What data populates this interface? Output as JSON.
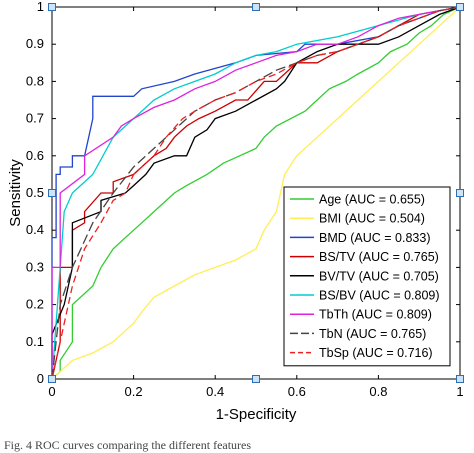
{
  "caption": "Fig. 4 ROC curves comparing the different features",
  "chart_data": {
    "type": "line",
    "title": "",
    "xlabel": "1-Specificity",
    "ylabel": "Sensitivity",
    "xlim": [
      0,
      1
    ],
    "ylim": [
      0,
      1
    ],
    "xticks": [
      "0",
      "0.2",
      "0.4",
      "0.6",
      "0.8",
      "1"
    ],
    "yticks": [
      "0",
      "0.1",
      "0.2",
      "0.3",
      "0.4",
      "0.5",
      "0.6",
      "0.7",
      "0.8",
      "0.9",
      "1"
    ],
    "grid": false,
    "legend_position": "bottom-right",
    "series": [
      {
        "name": "Age (AUC = 0.655)",
        "color": "#33cc33",
        "dash": "solid",
        "x": [
          0,
          0.02,
          0.02,
          0.05,
          0.05,
          0.1,
          0.12,
          0.15,
          0.2,
          0.22,
          0.25,
          0.3,
          0.33,
          0.38,
          0.42,
          0.46,
          0.5,
          0.52,
          0.55,
          0.62,
          0.65,
          0.68,
          0.72,
          0.75,
          0.8,
          0.83,
          0.87,
          0.9,
          0.93,
          0.96,
          1
        ],
        "y": [
          0,
          0.02,
          0.05,
          0.1,
          0.2,
          0.25,
          0.3,
          0.35,
          0.4,
          0.42,
          0.45,
          0.5,
          0.52,
          0.55,
          0.58,
          0.6,
          0.62,
          0.65,
          0.68,
          0.72,
          0.75,
          0.78,
          0.8,
          0.82,
          0.85,
          0.88,
          0.9,
          0.93,
          0.95,
          0.98,
          1
        ]
      },
      {
        "name": "BMI (AUC = 0.504)",
        "color": "#ffee55",
        "dash": "solid",
        "x": [
          0,
          0.02,
          0.05,
          0.1,
          0.15,
          0.2,
          0.22,
          0.25,
          0.3,
          0.35,
          0.4,
          0.45,
          0.5,
          0.52,
          0.55,
          0.57,
          0.6,
          0.65,
          0.7,
          0.75,
          0.8,
          0.85,
          0.9,
          0.95,
          1
        ],
        "y": [
          0,
          0.02,
          0.05,
          0.07,
          0.1,
          0.15,
          0.18,
          0.22,
          0.25,
          0.28,
          0.3,
          0.32,
          0.35,
          0.4,
          0.45,
          0.55,
          0.6,
          0.65,
          0.7,
          0.75,
          0.8,
          0.85,
          0.9,
          0.95,
          1
        ]
      },
      {
        "name": "BMD (AUC = 0.833)",
        "color": "#2244cc",
        "dash": "solid",
        "x": [
          0,
          0,
          0.01,
          0.01,
          0.02,
          0.02,
          0.05,
          0.05,
          0.08,
          0.1,
          0.1,
          0.2,
          0.22,
          0.3,
          0.35,
          0.45,
          0.5,
          0.6,
          0.62,
          0.7,
          0.8,
          0.85,
          0.9,
          0.95,
          1
        ],
        "y": [
          0,
          0.38,
          0.38,
          0.55,
          0.55,
          0.57,
          0.57,
          0.6,
          0.6,
          0.7,
          0.76,
          0.76,
          0.78,
          0.8,
          0.82,
          0.85,
          0.87,
          0.88,
          0.9,
          0.9,
          0.92,
          0.95,
          0.97,
          0.99,
          1
        ]
      },
      {
        "name": "BS/TV (AUC = 0.765)",
        "color": "#cc0000",
        "dash": "solid",
        "x": [
          0,
          0.02,
          0.02,
          0.05,
          0.05,
          0.08,
          0.08,
          0.12,
          0.15,
          0.15,
          0.2,
          0.25,
          0.28,
          0.3,
          0.33,
          0.36,
          0.4,
          0.45,
          0.48,
          0.52,
          0.55,
          0.6,
          0.65,
          0.7,
          0.75,
          0.8,
          0.85,
          0.9,
          1
        ],
        "y": [
          0,
          0.1,
          0.3,
          0.3,
          0.4,
          0.42,
          0.45,
          0.5,
          0.5,
          0.53,
          0.55,
          0.6,
          0.62,
          0.65,
          0.68,
          0.7,
          0.72,
          0.75,
          0.75,
          0.8,
          0.8,
          0.85,
          0.85,
          0.88,
          0.9,
          0.92,
          0.95,
          0.98,
          1
        ]
      },
      {
        "name": "BV/TV (AUC = 0.705)",
        "color": "#000000",
        "dash": "solid",
        "x": [
          0,
          0,
          0.03,
          0.05,
          0.05,
          0.12,
          0.12,
          0.18,
          0.2,
          0.23,
          0.25,
          0.3,
          0.33,
          0.35,
          0.38,
          0.4,
          0.45,
          0.5,
          0.55,
          0.57,
          0.6,
          0.65,
          0.7,
          0.8,
          0.85,
          0.9,
          0.95,
          1
        ],
        "y": [
          0,
          0.12,
          0.2,
          0.3,
          0.42,
          0.45,
          0.48,
          0.5,
          0.52,
          0.55,
          0.58,
          0.6,
          0.6,
          0.65,
          0.67,
          0.7,
          0.72,
          0.75,
          0.78,
          0.8,
          0.85,
          0.88,
          0.9,
          0.9,
          0.92,
          0.95,
          0.98,
          1
        ]
      },
      {
        "name": "BS/BV (AUC = 0.809)",
        "color": "#00cccc",
        "dash": "solid",
        "x": [
          0,
          0.01,
          0.02,
          0.03,
          0.05,
          0.1,
          0.15,
          0.2,
          0.25,
          0.3,
          0.35,
          0.4,
          0.45,
          0.5,
          0.55,
          0.6,
          0.7,
          0.8,
          0.9,
          1
        ],
        "y": [
          0,
          0.15,
          0.3,
          0.45,
          0.5,
          0.55,
          0.65,
          0.7,
          0.75,
          0.78,
          0.8,
          0.82,
          0.85,
          0.87,
          0.88,
          0.9,
          0.92,
          0.95,
          0.98,
          1
        ]
      },
      {
        "name": "TbTh (AUC = 0.809)",
        "color": "#dd22dd",
        "dash": "solid",
        "x": [
          0,
          0,
          0.02,
          0.02,
          0.08,
          0.08,
          0.15,
          0.17,
          0.2,
          0.25,
          0.3,
          0.35,
          0.4,
          0.45,
          0.5,
          0.55,
          0.6,
          0.65,
          0.7,
          0.75,
          0.8,
          0.85,
          0.9,
          0.95,
          1
        ],
        "y": [
          0,
          0.3,
          0.3,
          0.5,
          0.55,
          0.6,
          0.65,
          0.68,
          0.7,
          0.73,
          0.75,
          0.78,
          0.8,
          0.83,
          0.85,
          0.87,
          0.88,
          0.9,
          0.9,
          0.92,
          0.95,
          0.97,
          0.98,
          0.99,
          1
        ]
      },
      {
        "name": "TbN (AUC = 0.765)",
        "color": "#444444",
        "dash": "longdash",
        "x": [
          0,
          0.02,
          0.05,
          0.1,
          0.15,
          0.2,
          0.25,
          0.3,
          0.35,
          0.4,
          0.45,
          0.5,
          0.55,
          0.6,
          0.65,
          0.7,
          0.75,
          0.8,
          0.85,
          0.9,
          0.95,
          1
        ],
        "y": [
          0,
          0.2,
          0.3,
          0.42,
          0.5,
          0.57,
          0.62,
          0.67,
          0.72,
          0.75,
          0.77,
          0.8,
          0.83,
          0.85,
          0.87,
          0.88,
          0.9,
          0.92,
          0.95,
          0.97,
          0.99,
          1
        ]
      },
      {
        "name": "TbSp (AUC = 0.716)",
        "color": "#ee2222",
        "dash": "dashed",
        "x": [
          0,
          0.02,
          0.05,
          0.08,
          0.12,
          0.15,
          0.18,
          0.2,
          0.25,
          0.28,
          0.32,
          0.35,
          0.4,
          0.45,
          0.5,
          0.55,
          0.6,
          0.65,
          0.7,
          0.75,
          0.8,
          0.85,
          0.9,
          0.95,
          1
        ],
        "y": [
          0,
          0.1,
          0.25,
          0.35,
          0.42,
          0.48,
          0.5,
          0.55,
          0.6,
          0.65,
          0.7,
          0.72,
          0.75,
          0.77,
          0.8,
          0.82,
          0.85,
          0.87,
          0.88,
          0.9,
          0.92,
          0.95,
          0.97,
          0.99,
          1
        ]
      }
    ]
  }
}
